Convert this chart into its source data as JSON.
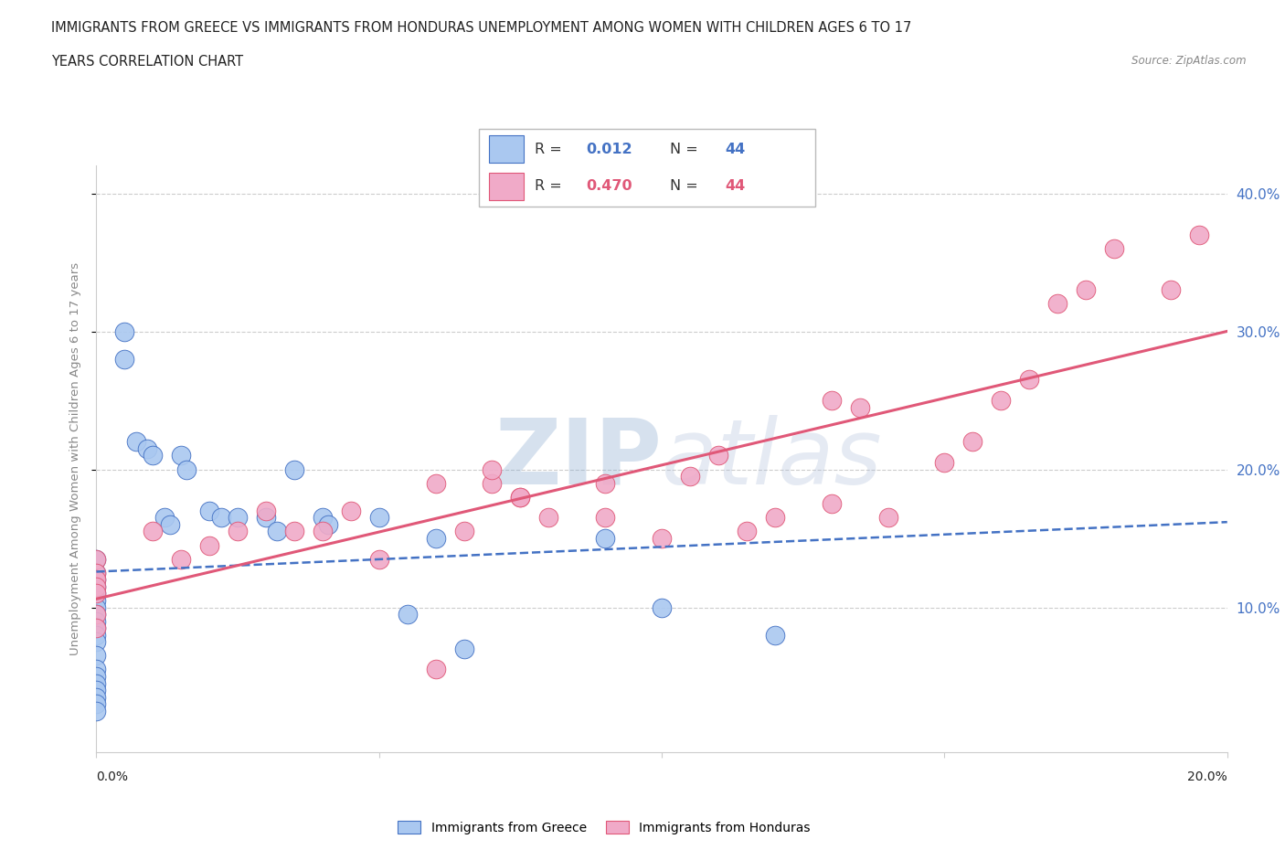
{
  "title_line1": "IMMIGRANTS FROM GREECE VS IMMIGRANTS FROM HONDURAS UNEMPLOYMENT AMONG WOMEN WITH CHILDREN AGES 6 TO 17",
  "title_line2": "YEARS CORRELATION CHART",
  "source": "Source: ZipAtlas.com",
  "ylabel": "Unemployment Among Women with Children Ages 6 to 17 years",
  "ytick_labels": [
    "10.0%",
    "20.0%",
    "30.0%",
    "40.0%"
  ],
  "ytick_values": [
    0.1,
    0.2,
    0.3,
    0.4
  ],
  "xmin": 0.0,
  "xmax": 0.2,
  "ymin": -0.005,
  "ymax": 0.42,
  "legend_greece": "Immigrants from Greece",
  "legend_honduras": "Immigrants from Honduras",
  "R_greece": "0.012",
  "N_greece": "44",
  "R_honduras": "0.470",
  "N_honduras": "44",
  "color_greece": "#aac8f0",
  "color_honduras": "#f0aac8",
  "color_greece_line": "#4472c4",
  "color_honduras_line": "#e05878",
  "watermark_color": "#c8daf0",
  "greece_x": [
    0.0,
    0.0,
    0.0,
    0.0,
    0.0,
    0.0,
    0.0,
    0.0,
    0.0,
    0.0,
    0.0,
    0.0,
    0.0,
    0.0,
    0.0,
    0.0,
    0.0,
    0.0,
    0.0,
    0.0,
    0.005,
    0.005,
    0.007,
    0.009,
    0.01,
    0.012,
    0.013,
    0.015,
    0.016,
    0.02,
    0.022,
    0.025,
    0.03,
    0.032,
    0.035,
    0.04,
    0.041,
    0.05,
    0.055,
    0.06,
    0.065,
    0.09,
    0.1,
    0.12
  ],
  "greece_y": [
    0.135,
    0.125,
    0.12,
    0.115,
    0.11,
    0.105,
    0.1,
    0.095,
    0.09,
    0.085,
    0.08,
    0.075,
    0.065,
    0.055,
    0.05,
    0.045,
    0.04,
    0.035,
    0.03,
    0.025,
    0.3,
    0.28,
    0.22,
    0.215,
    0.21,
    0.165,
    0.16,
    0.21,
    0.2,
    0.17,
    0.165,
    0.165,
    0.165,
    0.155,
    0.2,
    0.165,
    0.16,
    0.165,
    0.095,
    0.15,
    0.07,
    0.15,
    0.1,
    0.08
  ],
  "honduras_x": [
    0.0,
    0.0,
    0.0,
    0.0,
    0.0,
    0.0,
    0.0,
    0.01,
    0.015,
    0.02,
    0.025,
    0.03,
    0.035,
    0.04,
    0.045,
    0.05,
    0.06,
    0.065,
    0.07,
    0.075,
    0.08,
    0.09,
    0.09,
    0.1,
    0.105,
    0.11,
    0.12,
    0.13,
    0.135,
    0.14,
    0.15,
    0.155,
    0.16,
    0.165,
    0.17,
    0.175,
    0.18,
    0.19,
    0.195,
    0.115,
    0.13,
    0.07,
    0.075,
    0.06
  ],
  "honduras_y": [
    0.135,
    0.125,
    0.12,
    0.115,
    0.11,
    0.095,
    0.085,
    0.155,
    0.135,
    0.145,
    0.155,
    0.17,
    0.155,
    0.155,
    0.17,
    0.135,
    0.055,
    0.155,
    0.19,
    0.18,
    0.165,
    0.165,
    0.19,
    0.15,
    0.195,
    0.21,
    0.165,
    0.175,
    0.245,
    0.165,
    0.205,
    0.22,
    0.25,
    0.265,
    0.32,
    0.33,
    0.36,
    0.33,
    0.37,
    0.155,
    0.25,
    0.2,
    0.18,
    0.19
  ]
}
